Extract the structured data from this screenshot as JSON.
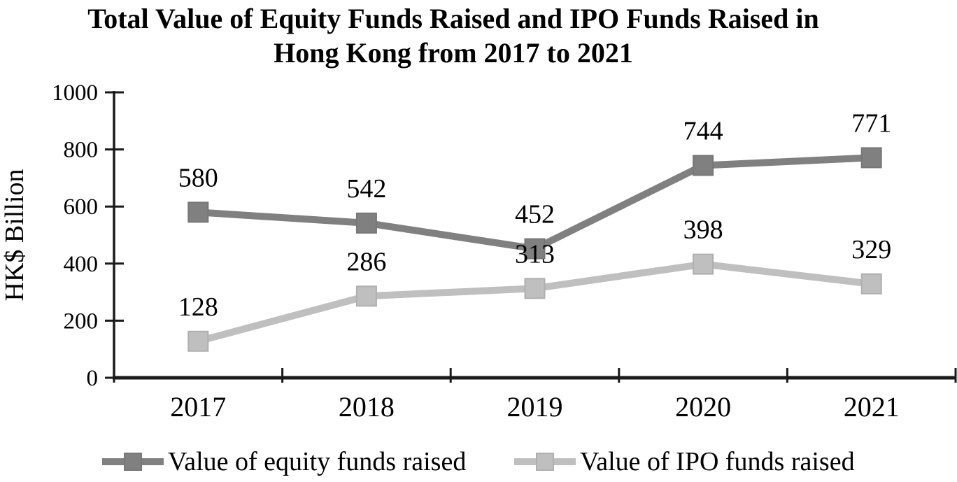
{
  "title": {
    "line1": "Total Value of Equity Funds Raised and IPO Funds Raised in",
    "line2": "Hong Kong from 2017 to 2021"
  },
  "y_axis": {
    "unit_label": "HK$ Billion"
  },
  "chart_data": {
    "type": "line",
    "title": "Total Value of Equity Funds Raised and IPO Funds Raised in Hong Kong from 2017 to 2021",
    "categories": [
      "2017",
      "2018",
      "2019",
      "2020",
      "2021"
    ],
    "series": [
      {
        "name": "Value of equity funds raised",
        "values": [
          580,
          542,
          452,
          744,
          771
        ],
        "color": "#808080",
        "marker_border": "#777777",
        "marker": "square"
      },
      {
        "name": "Value of IPO funds raised",
        "values": [
          128,
          286,
          313,
          398,
          329
        ],
        "color": "#BFBFBF",
        "marker_border": "#AFAFAF",
        "marker": "square"
      }
    ],
    "xlabel": "",
    "ylabel": "HK$ Billion",
    "ylim": [
      0,
      1000
    ],
    "y_ticks": [
      0,
      200,
      400,
      600,
      800,
      1000
    ],
    "grid": false,
    "legend_position": "bottom",
    "data_labels": true,
    "axis_color": "#1A1A1A",
    "text_color": "#000000"
  }
}
